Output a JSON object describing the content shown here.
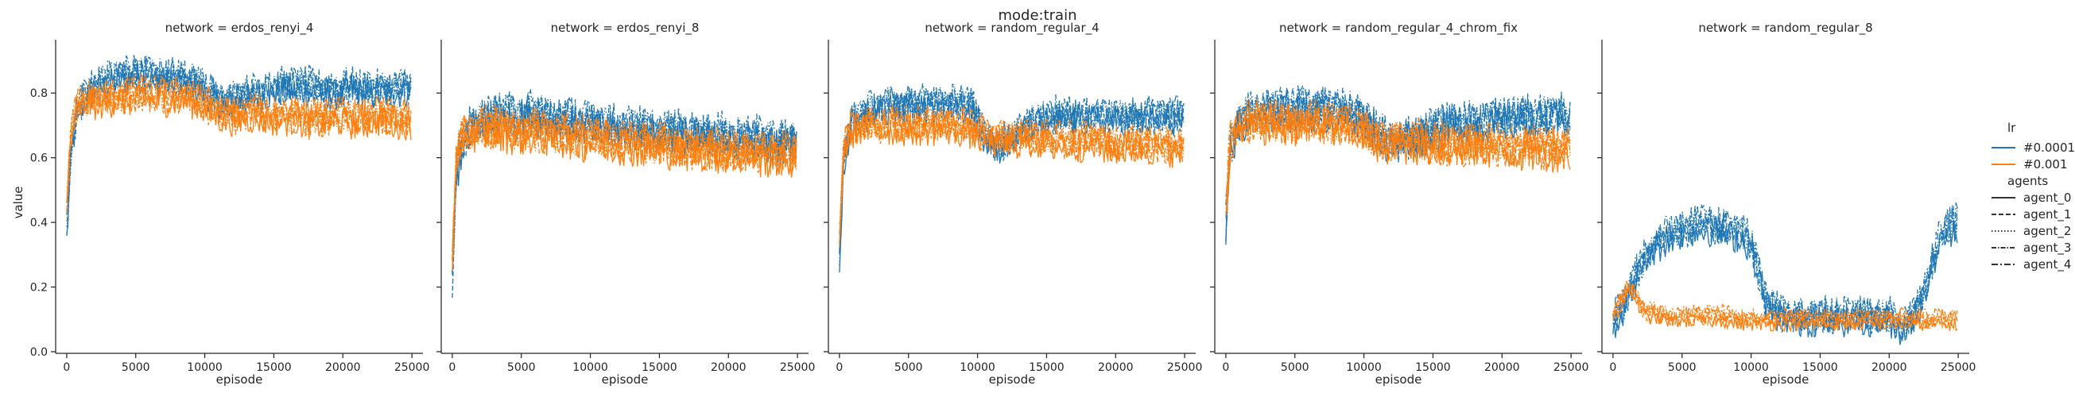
{
  "chart_data": {
    "type": "line",
    "title": "mode:train",
    "xlabel": "episode",
    "ylabel": "value",
    "xlim": [
      -800,
      25800
    ],
    "ylim": [
      -0.005,
      0.965
    ],
    "xticks": [
      0,
      5000,
      10000,
      15000,
      20000,
      25000
    ],
    "yticks": [
      0.0,
      0.2,
      0.4,
      0.6,
      0.8
    ],
    "xtick_labels": [
      "0",
      "5000",
      "10000",
      "15000",
      "20000",
      "25000"
    ],
    "ytick_labels": [
      "0.0",
      "0.2",
      "0.4",
      "0.6",
      "0.8"
    ],
    "grid": false,
    "lr_colors": {
      "#0.0001": "#1f77b4",
      "#0.001": "#ff7f0e"
    },
    "agent_dashes": {
      "agent_0": "",
      "agent_1": "6,3",
      "agent_2": "1.5,2.5",
      "agent_3": "6,2,1.5,2",
      "agent_4": "8,3,2,3"
    },
    "legend": {
      "position": "right",
      "lr_title": "lr",
      "lr_entries": [
        "#0.0001",
        "#0.001"
      ],
      "agents_title": "agents",
      "agent_entries": [
        "agent_0",
        "agent_1",
        "agent_2",
        "agent_3",
        "agent_4"
      ]
    },
    "panels": [
      {
        "title": "network = erdos_renyi_4",
        "series": [
          {
            "lr": "#0.0001",
            "x": [
              0,
              300,
              800,
              1500,
              2500,
              3500,
              4500,
              5500,
              6500,
              7500,
              8500,
              9500,
              10500,
              11500,
              12500,
              13500,
              14500,
              15500,
              16500,
              17500,
              18500,
              19500,
              20500,
              21500,
              22500,
              23500,
              24500,
              25000
            ],
            "y": [
              0.36,
              0.62,
              0.75,
              0.8,
              0.83,
              0.85,
              0.86,
              0.86,
              0.85,
              0.85,
              0.84,
              0.83,
              0.8,
              0.77,
              0.79,
              0.8,
              0.81,
              0.82,
              0.82,
              0.82,
              0.81,
              0.81,
              0.82,
              0.81,
              0.81,
              0.81,
              0.82,
              0.82
            ],
            "noise": 0.05
          },
          {
            "lr": "#0.001",
            "x": [
              0,
              300,
              800,
              1500,
              2500,
              3500,
              4500,
              5500,
              6500,
              7500,
              8500,
              9500,
              10500,
              11500,
              12500,
              13500,
              14500,
              15500,
              16500,
              17500,
              18500,
              19500,
              20500,
              21500,
              22500,
              23500,
              24500,
              25000
            ],
            "y": [
              0.45,
              0.68,
              0.76,
              0.78,
              0.78,
              0.79,
              0.79,
              0.8,
              0.79,
              0.79,
              0.79,
              0.78,
              0.75,
              0.73,
              0.73,
              0.74,
              0.73,
              0.73,
              0.73,
              0.72,
              0.72,
              0.73,
              0.72,
              0.72,
              0.73,
              0.72,
              0.72,
              0.72
            ],
            "noise": 0.05
          }
        ]
      },
      {
        "title": "network = erdos_renyi_8",
        "series": [
          {
            "lr": "#0.0001",
            "x": [
              0,
              300,
              800,
              1500,
              2500,
              3500,
              4500,
              5500,
              6500,
              7500,
              8500,
              9500,
              10500,
              11500,
              12500,
              13500,
              14500,
              15500,
              16500,
              17500,
              18500,
              19500,
              20500,
              21500,
              22500,
              23500,
              24500,
              25000
            ],
            "y": [
              0.22,
              0.55,
              0.66,
              0.7,
              0.72,
              0.73,
              0.73,
              0.74,
              0.73,
              0.72,
              0.72,
              0.71,
              0.7,
              0.7,
              0.69,
              0.69,
              0.68,
              0.68,
              0.68,
              0.67,
              0.67,
              0.67,
              0.66,
              0.66,
              0.66,
              0.65,
              0.65,
              0.65
            ],
            "noise": 0.06
          },
          {
            "lr": "#0.001",
            "x": [
              0,
              300,
              800,
              1500,
              2500,
              3500,
              4500,
              5500,
              6500,
              7500,
              8500,
              9500,
              10500,
              11500,
              12500,
              13500,
              14500,
              15500,
              16500,
              17500,
              18500,
              19500,
              20500,
              21500,
              22500,
              23500,
              24500,
              25000
            ],
            "y": [
              0.3,
              0.6,
              0.68,
              0.69,
              0.69,
              0.69,
              0.68,
              0.68,
              0.68,
              0.67,
              0.67,
              0.66,
              0.66,
              0.65,
              0.65,
              0.64,
              0.64,
              0.64,
              0.63,
              0.63,
              0.63,
              0.62,
              0.62,
              0.62,
              0.61,
              0.61,
              0.61,
              0.61
            ],
            "noise": 0.06
          }
        ]
      },
      {
        "title": "network = random_regular_4",
        "series": [
          {
            "lr": "#0.0001",
            "x": [
              0,
              300,
              800,
              1500,
              2500,
              3500,
              4500,
              5500,
              6500,
              7500,
              8500,
              9500,
              10500,
              11500,
              12500,
              13500,
              14500,
              15500,
              16500,
              17500,
              18500,
              19500,
              20500,
              21500,
              22500,
              23500,
              24500,
              25000
            ],
            "y": [
              0.3,
              0.6,
              0.7,
              0.73,
              0.75,
              0.76,
              0.76,
              0.76,
              0.77,
              0.77,
              0.77,
              0.76,
              0.68,
              0.64,
              0.66,
              0.7,
              0.72,
              0.73,
              0.73,
              0.73,
              0.73,
              0.73,
              0.73,
              0.73,
              0.73,
              0.73,
              0.73,
              0.73
            ],
            "noise": 0.05
          },
          {
            "lr": "#0.001",
            "x": [
              0,
              300,
              800,
              1500,
              2500,
              3500,
              4500,
              5500,
              6500,
              7500,
              8500,
              9500,
              10500,
              11500,
              12500,
              13500,
              14500,
              15500,
              16500,
              17500,
              18500,
              19500,
              20500,
              21500,
              22500,
              23500,
              24500,
              25000
            ],
            "y": [
              0.35,
              0.62,
              0.69,
              0.7,
              0.7,
              0.7,
              0.7,
              0.7,
              0.7,
              0.7,
              0.7,
              0.69,
              0.67,
              0.66,
              0.66,
              0.66,
              0.66,
              0.65,
              0.65,
              0.65,
              0.65,
              0.64,
              0.64,
              0.64,
              0.64,
              0.64,
              0.63,
              0.63
            ],
            "noise": 0.05
          }
        ]
      },
      {
        "title": "network = random_regular_4_chrom_fix",
        "series": [
          {
            "lr": "#0.0001",
            "x": [
              0,
              300,
              800,
              1500,
              2500,
              3500,
              4500,
              5500,
              6500,
              7500,
              8500,
              9500,
              10500,
              11500,
              12500,
              13500,
              14500,
              15500,
              16500,
              17500,
              18500,
              19500,
              20500,
              21500,
              22500,
              23500,
              24500,
              25000
            ],
            "y": [
              0.38,
              0.62,
              0.7,
              0.73,
              0.74,
              0.75,
              0.75,
              0.75,
              0.75,
              0.75,
              0.74,
              0.74,
              0.7,
              0.66,
              0.65,
              0.66,
              0.68,
              0.7,
              0.71,
              0.71,
              0.71,
              0.72,
              0.72,
              0.73,
              0.73,
              0.73,
              0.73,
              0.73
            ],
            "noise": 0.06
          },
          {
            "lr": "#0.001",
            "x": [
              0,
              300,
              800,
              1500,
              2500,
              3500,
              4500,
              5500,
              6500,
              7500,
              8500,
              9500,
              10500,
              11500,
              12500,
              13500,
              14500,
              15500,
              16500,
              17500,
              18500,
              19500,
              20500,
              21500,
              22500,
              23500,
              24500,
              25000
            ],
            "y": [
              0.42,
              0.64,
              0.7,
              0.71,
              0.71,
              0.71,
              0.71,
              0.71,
              0.71,
              0.7,
              0.7,
              0.69,
              0.67,
              0.65,
              0.65,
              0.65,
              0.65,
              0.64,
              0.64,
              0.64,
              0.64,
              0.64,
              0.63,
              0.63,
              0.63,
              0.63,
              0.63,
              0.63
            ],
            "noise": 0.06
          }
        ]
      },
      {
        "title": "network = random_regular_8",
        "series": [
          {
            "lr": "#0.0001",
            "x": [
              0,
              500,
              1000,
              1500,
              2000,
              2500,
              3000,
              4000,
              5000,
              6000,
              7000,
              8000,
              9000,
              10000,
              10500,
              11000,
              11500,
              12000,
              13000,
              14000,
              15000,
              16000,
              17000,
              18000,
              19000,
              20000,
              20500,
              21000,
              21500,
              22000,
              22500,
              23000,
              23500,
              24000,
              24500,
              25000
            ],
            "y": [
              0.1,
              0.12,
              0.16,
              0.22,
              0.27,
              0.3,
              0.33,
              0.36,
              0.38,
              0.39,
              0.39,
              0.38,
              0.37,
              0.34,
              0.25,
              0.17,
              0.14,
              0.12,
              0.11,
              0.11,
              0.11,
              0.11,
              0.11,
              0.11,
              0.11,
              0.11,
              0.09,
              0.08,
              0.1,
              0.13,
              0.18,
              0.26,
              0.33,
              0.37,
              0.39,
              0.4
            ],
            "noise": 0.05
          },
          {
            "lr": "#0.001",
            "x": [
              0,
              500,
              1000,
              1500,
              2000,
              2500,
              3000,
              4000,
              5000,
              6000,
              7000,
              8000,
              9000,
              10000,
              11000,
              12000,
              13000,
              14000,
              15000,
              16000,
              17000,
              18000,
              19000,
              20000,
              21000,
              22000,
              23000,
              24000,
              25000
            ],
            "y": [
              0.11,
              0.15,
              0.2,
              0.19,
              0.14,
              0.12,
              0.12,
              0.11,
              0.11,
              0.11,
              0.11,
              0.11,
              0.1,
              0.1,
              0.1,
              0.1,
              0.1,
              0.1,
              0.1,
              0.1,
              0.1,
              0.1,
              0.1,
              0.1,
              0.1,
              0.1,
              0.1,
              0.1,
              0.1
            ],
            "noise": 0.02
          }
        ]
      }
    ]
  }
}
